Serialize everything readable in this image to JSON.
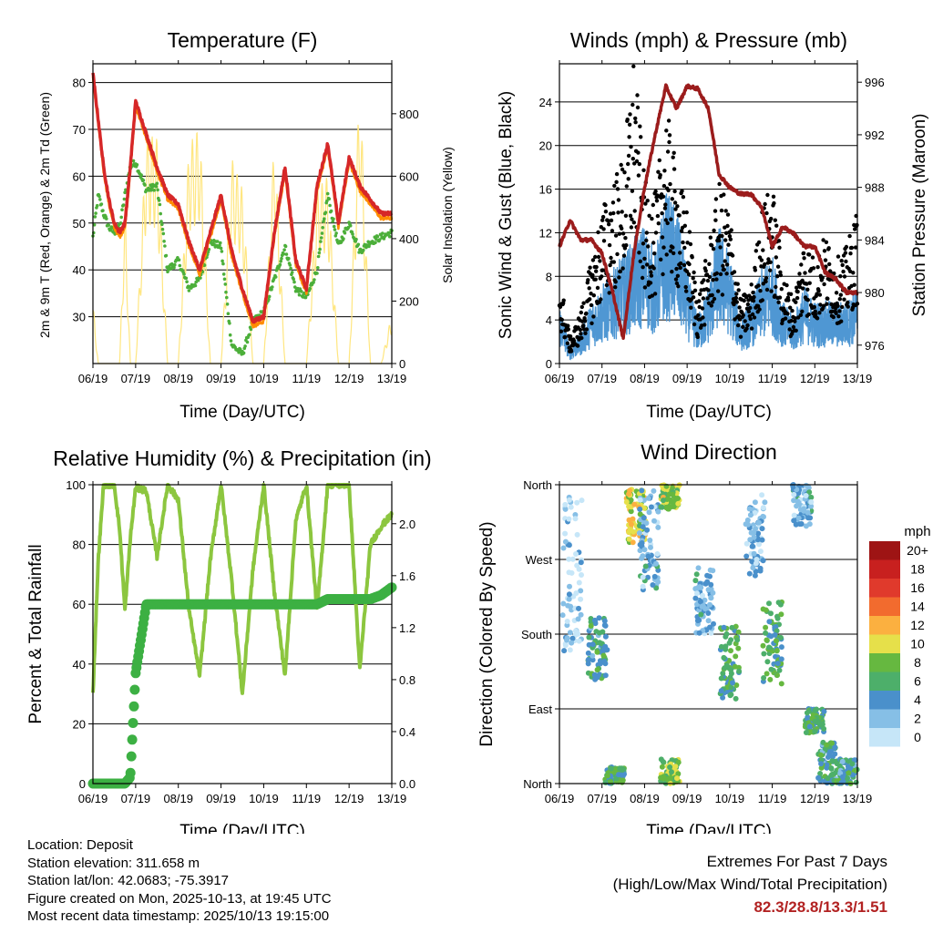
{
  "colors": {
    "temp_2m": "#d62728",
    "temp_9m": "#ff8c00",
    "dewpoint": "#4caf3a",
    "solar": "#ffe680",
    "wind": "#4f97d3",
    "gust": "#000000",
    "pressure": "#9b1c1c",
    "rh": "#8cc63f",
    "precip": "#3cb043",
    "extremes": "#b22222"
  },
  "time_ticks": [
    "06/19",
    "07/19",
    "08/19",
    "09/19",
    "10/19",
    "11/19",
    "12/19",
    "13/19"
  ],
  "chart_data": [
    {
      "id": "temperature",
      "type": "line",
      "title": "Temperature (F)",
      "xlabel": "Time (Day/UTC)",
      "ylabel": "2m & 9m T (Red, Orange) & 2m Td (Green)",
      "y2label": "Solar Insolation (Yellow)",
      "ylim": [
        20,
        84
      ],
      "yticks": [
        "30",
        "40",
        "50",
        "60",
        "70",
        "80"
      ],
      "y2lim": [
        0,
        960
      ],
      "y2ticks": [
        "0",
        "200",
        "400",
        "600",
        "800"
      ],
      "x": [
        0,
        0.125,
        0.25,
        0.375,
        0.5,
        0.625,
        0.75,
        0.875,
        1,
        1.25,
        1.5,
        1.75,
        2,
        2.25,
        2.5,
        2.75,
        3,
        3.25,
        3.5,
        3.75,
        4,
        4.25,
        4.5,
        4.75,
        5,
        5.25,
        5.5,
        5.75,
        6,
        6.25,
        6.5,
        6.75,
        7
      ],
      "series": [
        {
          "name": "2m T",
          "color_key": "temp_2m",
          "values": [
            82,
            72,
            62,
            55,
            50,
            48,
            50,
            62,
            76,
            69,
            62,
            56,
            54,
            46,
            40,
            48,
            56,
            44,
            36,
            29,
            30,
            48,
            62,
            42,
            36,
            58,
            67,
            50,
            64,
            58,
            55,
            52,
            52
          ]
        },
        {
          "name": "9m T",
          "color_key": "temp_9m",
          "values": [
            81,
            71,
            61,
            54,
            49,
            47,
            49,
            61,
            75,
            68,
            61,
            55,
            53,
            45,
            39,
            47,
            55,
            43,
            35,
            28,
            29,
            47,
            61,
            41,
            35,
            57,
            66,
            49,
            63,
            57,
            54,
            51,
            51
          ]
        },
        {
          "name": "2m Td",
          "color_key": "dewpoint",
          "values": [
            47,
            56,
            52,
            49,
            48,
            49,
            56,
            62,
            63,
            57,
            58,
            40,
            42,
            36,
            38,
            46,
            45,
            24,
            22,
            29,
            31,
            38,
            45,
            36,
            34,
            40,
            56,
            45,
            50,
            44,
            46,
            47,
            48
          ]
        },
        {
          "name": "Solar Insolation",
          "color_key": "solar",
          "axis": "y2",
          "values": [
            200,
            0,
            0,
            0,
            0,
            0,
            520,
            0,
            0,
            740,
            720,
            0,
            0,
            700,
            760,
            0,
            0,
            660,
            560,
            0,
            0,
            740,
            0,
            0,
            0,
            560,
            600,
            0,
            0,
            920,
            0,
            0,
            160
          ]
        }
      ]
    },
    {
      "id": "winds",
      "type": "scatter",
      "title": "Winds (mph) & Pressure (mb)",
      "xlabel": "Time (Day/UTC)",
      "ylabel": "Sonic Wind & Gust (Blue, Black)",
      "y2label": "Station Pressure (Maroon)",
      "ylim": [
        0,
        27.5
      ],
      "yticks": [
        "0",
        "4",
        "8",
        "12",
        "16",
        "20",
        "24"
      ],
      "y2lim": [
        974.6,
        997.4
      ],
      "y2ticks": [
        "976",
        "980",
        "984",
        "988",
        "992",
        "996"
      ],
      "x": [
        0,
        0.25,
        0.5,
        0.75,
        1,
        1.25,
        1.5,
        1.75,
        2,
        2.25,
        2.5,
        2.75,
        3,
        3.25,
        3.5,
        3.75,
        4,
        4.25,
        4.5,
        4.75,
        5,
        5.25,
        5.5,
        5.75,
        6,
        6.25,
        6.5,
        6.75,
        7
      ],
      "series": [
        {
          "name": "Sonic Wind",
          "color_key": "wind",
          "values": [
            4,
            1,
            2,
            4,
            5,
            6,
            7,
            8,
            9,
            7,
            11,
            10,
            6,
            3,
            5,
            9,
            7,
            3,
            4,
            6,
            7,
            4,
            3,
            5,
            4,
            4,
            4,
            4,
            5
          ]
        },
        {
          "name": "Gust",
          "color_key": "gust",
          "values": [
            7,
            2,
            4,
            8,
            12,
            14,
            16,
            24,
            14,
            13,
            20,
            15,
            12,
            5,
            9,
            14,
            12,
            5,
            6,
            12,
            14,
            7,
            5,
            10,
            8,
            10,
            8,
            9,
            12
          ]
        },
        {
          "name": "Station Pressure",
          "color_key": "pressure",
          "axis": "y2",
          "values": [
            983.5,
            985.5,
            984,
            984,
            983,
            980,
            976.5,
            983,
            988,
            992,
            995.7,
            994,
            995.7,
            995.5,
            994,
            989,
            988,
            987.5,
            987.5,
            986.5,
            983.5,
            985,
            984.5,
            983.5,
            983.5,
            981.5,
            981,
            980,
            980
          ]
        }
      ]
    },
    {
      "id": "humidity",
      "type": "line",
      "title": "Relative Humidity (%) & Precipitation (in)",
      "xlabel": "Time (Day/UTC)",
      "ylabel": "Percent & Total Rainfall",
      "ylim": [
        0,
        100
      ],
      "yticks": [
        "0",
        "20",
        "40",
        "60",
        "80",
        "100"
      ],
      "y2lim": [
        0,
        2.3
      ],
      "y2ticks": [
        "0.0",
        "0.4",
        "0.8",
        "1.2",
        "1.6",
        "2.0"
      ],
      "x": [
        0,
        0.125,
        0.25,
        0.375,
        0.5,
        0.625,
        0.75,
        0.875,
        1,
        1.25,
        1.5,
        1.75,
        2,
        2.25,
        2.5,
        2.75,
        3,
        3.25,
        3.5,
        3.75,
        4,
        4.25,
        4.5,
        4.75,
        5,
        5.25,
        5.5,
        5.75,
        6,
        6.25,
        6.5,
        6.75,
        7
      ],
      "series": [
        {
          "name": "Relative Humidity",
          "color_key": "rh",
          "values": [
            30,
            75,
            100,
            100,
            100,
            85,
            58,
            82,
            99,
            98,
            76,
            100,
            95,
            58,
            36,
            75,
            100,
            68,
            30,
            72,
            100,
            64,
            36,
            88,
            100,
            58,
            100,
            100,
            100,
            38,
            80,
            86,
            90
          ]
        },
        {
          "name": "Total Rainfall",
          "color_key": "precip",
          "axis": "y2",
          "values": [
            0,
            0,
            0,
            0,
            0,
            0,
            0,
            0.05,
            0.85,
            1.38,
            1.38,
            1.38,
            1.38,
            1.38,
            1.38,
            1.38,
            1.38,
            1.38,
            1.38,
            1.38,
            1.38,
            1.38,
            1.38,
            1.38,
            1.38,
            1.38,
            1.42,
            1.42,
            1.42,
            1.42,
            1.42,
            1.45,
            1.51
          ]
        }
      ]
    },
    {
      "id": "direction",
      "type": "scatter",
      "title": "Wind Direction",
      "xlabel": "Time (Day/UTC)",
      "ylabel": "Direction (Colored By Speed)",
      "ylim": [
        0,
        360
      ],
      "yticks": [
        "North",
        "East",
        "South",
        "West",
        "North"
      ],
      "colorbar": {
        "label": "mph",
        "labels": [
          "0",
          "2",
          "4",
          "6",
          "8",
          "10",
          "12",
          "14",
          "16",
          "18",
          "20+"
        ],
        "colors": [
          "#c6e6f8",
          "#86bfe6",
          "#4a90cb",
          "#4daf6a",
          "#66b840",
          "#e6e04a",
          "#fbb040",
          "#f26b2e",
          "#e03a2c",
          "#c8201f",
          "#9e1414"
        ]
      },
      "clusters": [
        {
          "x": 0.3,
          "dir_low": 160,
          "dir_high": 345,
          "speed": 1
        },
        {
          "x": 0.9,
          "dir_low": 125,
          "dir_high": 200,
          "speed": 5
        },
        {
          "x": 1.3,
          "dir_low": 0,
          "dir_high": 20,
          "speed": 6
        },
        {
          "x": 1.8,
          "dir_low": 290,
          "dir_high": 355,
          "speed": 10
        },
        {
          "x": 2.1,
          "dir_low": 230,
          "dir_high": 355,
          "speed": 3
        },
        {
          "x": 2.6,
          "dir_low": 330,
          "dir_high": 360,
          "speed": 9
        },
        {
          "x": 2.6,
          "dir_low": 0,
          "dir_high": 30,
          "speed": 8
        },
        {
          "x": 3.4,
          "dir_low": 180,
          "dir_high": 260,
          "speed": 3
        },
        {
          "x": 4.0,
          "dir_low": 100,
          "dir_high": 190,
          "speed": 6
        },
        {
          "x": 4.6,
          "dir_low": 250,
          "dir_high": 350,
          "speed": 2
        },
        {
          "x": 5.0,
          "dir_low": 120,
          "dir_high": 220,
          "speed": 6
        },
        {
          "x": 5.7,
          "dir_low": 310,
          "dir_high": 360,
          "speed": 3
        },
        {
          "x": 6.0,
          "dir_low": 60,
          "dir_high": 90,
          "speed": 6
        },
        {
          "x": 6.3,
          "dir_low": 0,
          "dir_high": 50,
          "speed": 5
        },
        {
          "x": 6.8,
          "dir_low": 0,
          "dir_high": 30,
          "speed": 5
        }
      ]
    }
  ],
  "footer": {
    "location": "Location: Deposit",
    "elevation": "Station elevation: 311.658 m",
    "latlon": "Station lat/lon: 42.0683; -75.3917",
    "created": "Figure created on Mon, 2025-10-13, at 19:45 UTC",
    "recent": "Most recent data timestamp: 2025/10/13 19:15:00",
    "extremes_title": "Extremes For Past 7 Days",
    "extremes_subtitle": "(High/Low/Max Wind/Total Precipitation)",
    "extremes_values": "82.3/28.8/13.3/1.51"
  }
}
